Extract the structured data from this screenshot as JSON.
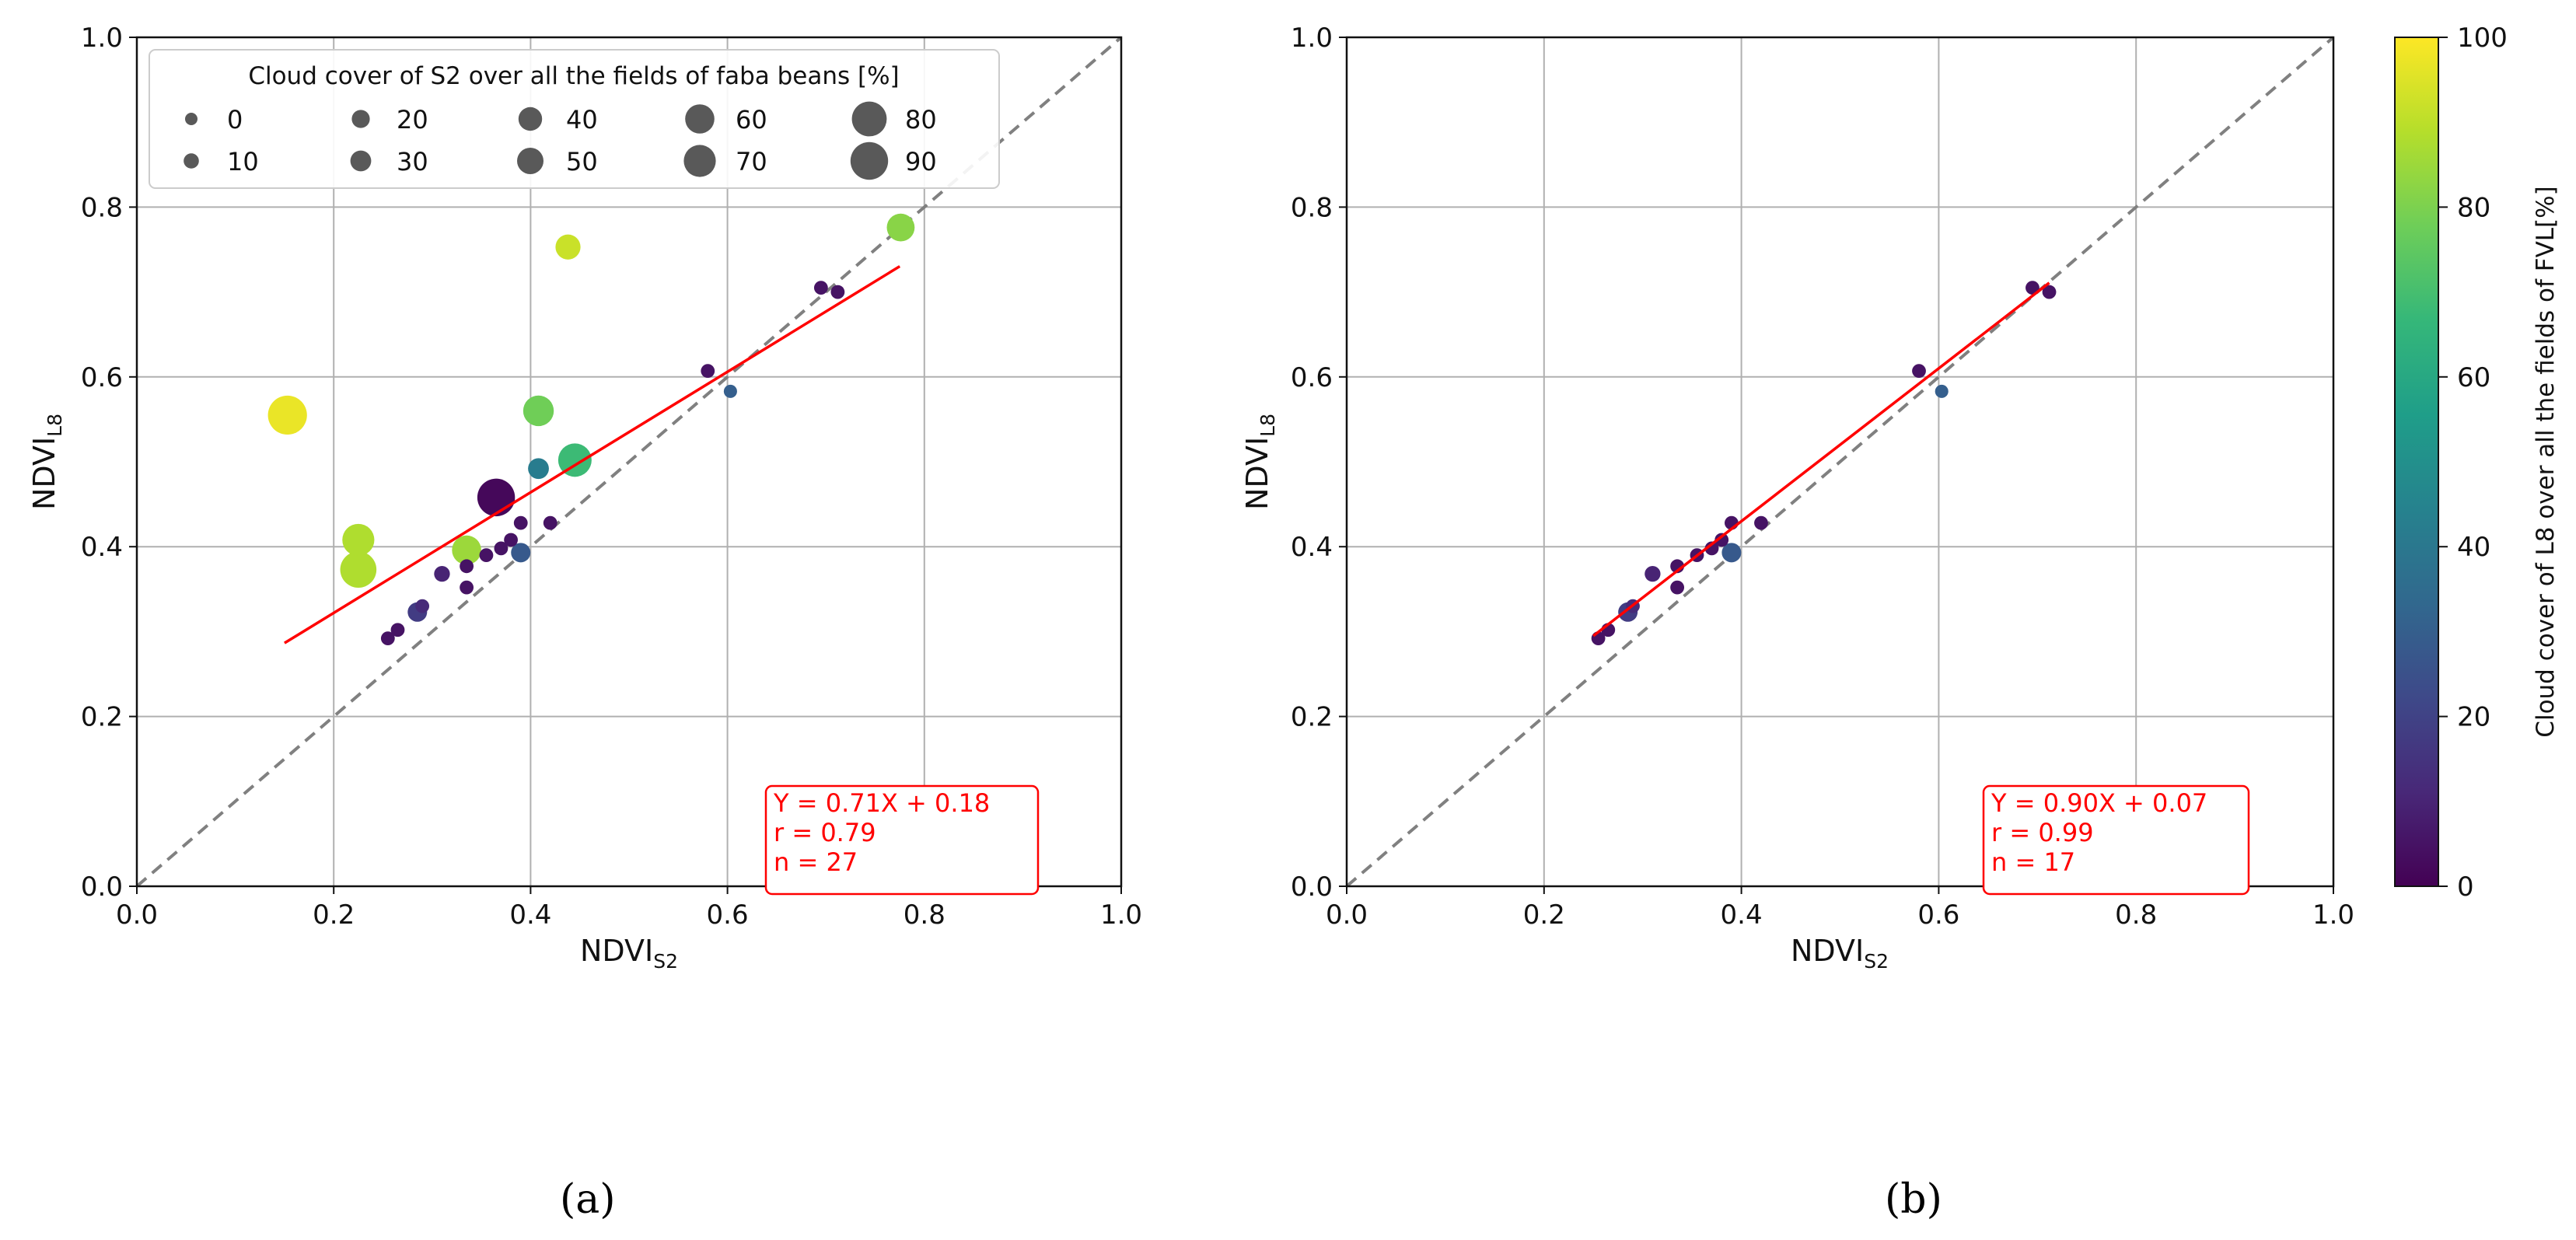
{
  "colors": {
    "identity": "#808080",
    "fit": "#ff0000",
    "grid": "#b0b0b0",
    "viridis": [
      "#440154",
      "#482878",
      "#3e4989",
      "#31688e",
      "#26828e",
      "#1f9e89",
      "#35b779",
      "#6ece58",
      "#b5de2b",
      "#fde725"
    ]
  },
  "chart_data": [
    {
      "type": "scatter",
      "panel_label": "(a)",
      "xlabel": "NDVI",
      "xlabel_sub": "S2",
      "ylabel": "NDVI",
      "ylabel_sub": "L8",
      "xlim": [
        0.0,
        1.0
      ],
      "ylim": [
        0.0,
        1.0
      ],
      "ticks": [
        "0.0",
        "0.2",
        "0.4",
        "0.6",
        "0.8",
        "1.0"
      ],
      "grid": true,
      "identity_line": true,
      "fit": {
        "slope": 0.71,
        "intercept": 0.18,
        "x_range": [
          0.15,
          0.775
        ]
      },
      "annotation": [
        "Y = 0.71X + 0.18",
        "r = 0.79",
        "n = 27"
      ],
      "size_legend": {
        "title": "Cloud cover of S2 over all the fields of faba beans [%]",
        "placement": "top-left",
        "entries": [
          "0",
          "10",
          "20",
          "30",
          "40",
          "50",
          "60",
          "70",
          "80",
          "90"
        ]
      },
      "points": [
        {
          "x": 0.153,
          "y": 0.555,
          "size_cc": 95,
          "color_cc": 97
        },
        {
          "x": 0.225,
          "y": 0.408,
          "size_cc": 70,
          "color_cc": 88
        },
        {
          "x": 0.225,
          "y": 0.373,
          "size_cc": 85,
          "color_cc": 88
        },
        {
          "x": 0.255,
          "y": 0.292,
          "size_cc": 5,
          "color_cc": 5
        },
        {
          "x": 0.265,
          "y": 0.302,
          "size_cc": 5,
          "color_cc": 5
        },
        {
          "x": 0.285,
          "y": 0.323,
          "size_cc": 25,
          "color_cc": 18
        },
        {
          "x": 0.29,
          "y": 0.33,
          "size_cc": 5,
          "color_cc": 12
        },
        {
          "x": 0.31,
          "y": 0.368,
          "size_cc": 12,
          "color_cc": 10
        },
        {
          "x": 0.335,
          "y": 0.396,
          "size_cc": 60,
          "color_cc": 85
        },
        {
          "x": 0.335,
          "y": 0.377,
          "size_cc": 5,
          "color_cc": 5
        },
        {
          "x": 0.335,
          "y": 0.352,
          "size_cc": 5,
          "color_cc": 5
        },
        {
          "x": 0.355,
          "y": 0.39,
          "size_cc": 5,
          "color_cc": 5
        },
        {
          "x": 0.365,
          "y": 0.458,
          "size_cc": 90,
          "color_cc": 2
        },
        {
          "x": 0.37,
          "y": 0.398,
          "size_cc": 5,
          "color_cc": 5
        },
        {
          "x": 0.38,
          "y": 0.408,
          "size_cc": 5,
          "color_cc": 5
        },
        {
          "x": 0.39,
          "y": 0.428,
          "size_cc": 5,
          "color_cc": 5
        },
        {
          "x": 0.39,
          "y": 0.393,
          "size_cc": 25,
          "color_cc": 28
        },
        {
          "x": 0.408,
          "y": 0.492,
          "size_cc": 30,
          "color_cc": 42
        },
        {
          "x": 0.408,
          "y": 0.56,
          "size_cc": 65,
          "color_cc": 78
        },
        {
          "x": 0.42,
          "y": 0.428,
          "size_cc": 5,
          "color_cc": 5
        },
        {
          "x": 0.438,
          "y": 0.753,
          "size_cc": 45,
          "color_cc": 92
        },
        {
          "x": 0.445,
          "y": 0.502,
          "size_cc": 75,
          "color_cc": 68
        },
        {
          "x": 0.58,
          "y": 0.607,
          "size_cc": 5,
          "color_cc": 5
        },
        {
          "x": 0.603,
          "y": 0.583,
          "size_cc": 3,
          "color_cc": 30
        },
        {
          "x": 0.695,
          "y": 0.705,
          "size_cc": 5,
          "color_cc": 5
        },
        {
          "x": 0.712,
          "y": 0.7,
          "size_cc": 5,
          "color_cc": 5
        },
        {
          "x": 0.776,
          "y": 0.776,
          "size_cc": 55,
          "color_cc": 82
        }
      ]
    },
    {
      "type": "scatter",
      "panel_label": "(b)",
      "xlabel": "NDVI",
      "xlabel_sub": "S2",
      "ylabel": "NDVI",
      "ylabel_sub": "L8",
      "xlim": [
        0.0,
        1.0
      ],
      "ylim": [
        0.0,
        1.0
      ],
      "ticks": [
        "0.0",
        "0.2",
        "0.4",
        "0.6",
        "0.8",
        "1.0"
      ],
      "grid": true,
      "identity_line": true,
      "fit": {
        "slope": 0.9,
        "intercept": 0.07,
        "x_range": [
          0.25,
          0.712
        ]
      },
      "annotation": [
        "Y = 0.90X + 0.07",
        "r = 0.99",
        "n = 17"
      ],
      "colorbar": {
        "label": "Cloud cover of L8 over all the fields of FVL[%]",
        "range": [
          0,
          100
        ],
        "ticks": [
          "0",
          "20",
          "40",
          "60",
          "80",
          "100"
        ]
      },
      "points": [
        {
          "x": 0.255,
          "y": 0.292,
          "size_cc": 5,
          "color_cc": 5
        },
        {
          "x": 0.265,
          "y": 0.302,
          "size_cc": 5,
          "color_cc": 5
        },
        {
          "x": 0.285,
          "y": 0.323,
          "size_cc": 25,
          "color_cc": 18
        },
        {
          "x": 0.29,
          "y": 0.33,
          "size_cc": 5,
          "color_cc": 12
        },
        {
          "x": 0.31,
          "y": 0.368,
          "size_cc": 12,
          "color_cc": 10
        },
        {
          "x": 0.335,
          "y": 0.377,
          "size_cc": 5,
          "color_cc": 5
        },
        {
          "x": 0.335,
          "y": 0.352,
          "size_cc": 5,
          "color_cc": 5
        },
        {
          "x": 0.355,
          "y": 0.39,
          "size_cc": 5,
          "color_cc": 5
        },
        {
          "x": 0.37,
          "y": 0.398,
          "size_cc": 5,
          "color_cc": 5
        },
        {
          "x": 0.38,
          "y": 0.408,
          "size_cc": 5,
          "color_cc": 5
        },
        {
          "x": 0.39,
          "y": 0.428,
          "size_cc": 5,
          "color_cc": 5
        },
        {
          "x": 0.39,
          "y": 0.393,
          "size_cc": 25,
          "color_cc": 28
        },
        {
          "x": 0.42,
          "y": 0.428,
          "size_cc": 5,
          "color_cc": 5
        },
        {
          "x": 0.58,
          "y": 0.607,
          "size_cc": 5,
          "color_cc": 5
        },
        {
          "x": 0.603,
          "y": 0.583,
          "size_cc": 3,
          "color_cc": 30
        },
        {
          "x": 0.695,
          "y": 0.705,
          "size_cc": 5,
          "color_cc": 5
        },
        {
          "x": 0.712,
          "y": 0.7,
          "size_cc": 5,
          "color_cc": 5
        }
      ]
    }
  ]
}
